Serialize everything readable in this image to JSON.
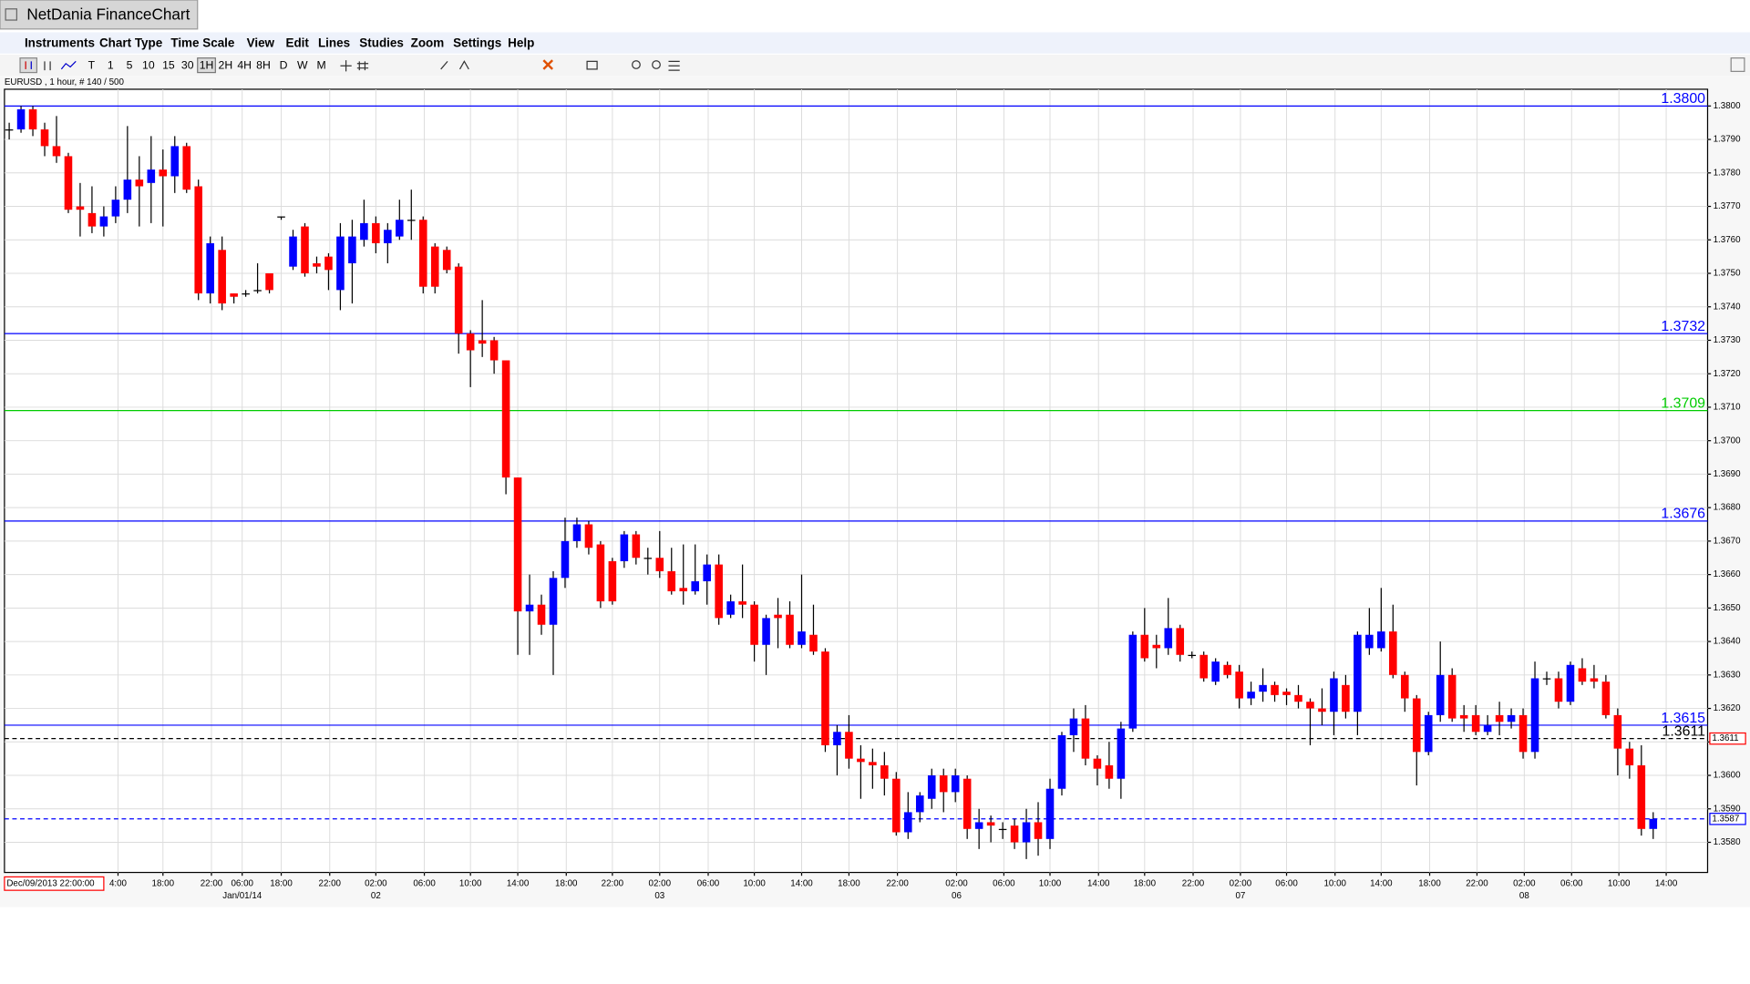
{
  "window": {
    "title": "NetDania FinanceChart",
    "menu": [
      "Instruments",
      "Chart Type",
      "Time Scale",
      "View",
      "Edit",
      "Lines",
      "Studies",
      "Zoom",
      "Settings",
      "Help"
    ],
    "toolbar": [
      "T",
      "1",
      "5",
      "10",
      "15",
      "30",
      "1H",
      "2H",
      "4H",
      "8H",
      "D",
      "W",
      "M"
    ],
    "toolbar_selected": "1H"
  },
  "chart_data": {
    "type": "candlestick",
    "symbol_info": "EURUSD , 1 hour, # 140 / 500",
    "start_label": "Dec/09/2013 22:00:00",
    "up_color": "#0000ff",
    "down_color": "#ff0000",
    "flat_color": "#000000",
    "grid": true,
    "xlim": [
      -0.4,
      143.6
    ],
    "ylim": [
      1.3571,
      1.3805
    ],
    "yticks": [
      {
        "value": 1.358,
        "label": "1.3580"
      },
      {
        "value": 1.359,
        "label": "1.3590"
      },
      {
        "value": 1.36,
        "label": "1.3600"
      },
      {
        "value": 1.361,
        "label": "1.3610"
      },
      {
        "value": 1.362,
        "label": "1.3620"
      },
      {
        "value": 1.363,
        "label": "1.3630"
      },
      {
        "value": 1.364,
        "label": "1.3640"
      },
      {
        "value": 1.365,
        "label": "1.3650"
      },
      {
        "value": 1.366,
        "label": "1.3660"
      },
      {
        "value": 1.367,
        "label": "1.3670"
      },
      {
        "value": 1.368,
        "label": "1.3680"
      },
      {
        "value": 1.369,
        "label": "1.3690"
      },
      {
        "value": 1.37,
        "label": "1.3700"
      },
      {
        "value": 1.371,
        "label": "1.3710"
      },
      {
        "value": 1.372,
        "label": "1.3720"
      },
      {
        "value": 1.373,
        "label": "1.3730"
      },
      {
        "value": 1.374,
        "label": "1.3740"
      },
      {
        "value": 1.375,
        "label": "1.3750"
      },
      {
        "value": 1.376,
        "label": "1.3760"
      },
      {
        "value": 1.377,
        "label": "1.3770"
      },
      {
        "value": 1.378,
        "label": "1.3780"
      },
      {
        "value": 1.379,
        "label": "1.3790"
      },
      {
        "value": 1.38,
        "label": "1.3800"
      }
    ],
    "xticks": [
      {
        "value": 9.2,
        "label": "4:00"
      },
      {
        "value": 13.0,
        "label": "18:00"
      },
      {
        "value": 17.1,
        "label": "22:00"
      },
      {
        "value": 19.7,
        "label": "06:00"
      },
      {
        "value": 23.0,
        "label": "18:00"
      },
      {
        "value": 27.1,
        "label": "22:00"
      },
      {
        "value": 31.0,
        "label": "02:00"
      },
      {
        "value": 35.1,
        "label": "06:00"
      },
      {
        "value": 39.0,
        "label": "10:00"
      },
      {
        "value": 43.0,
        "label": "14:00"
      },
      {
        "value": 47.1,
        "label": "18:00"
      },
      {
        "value": 51.0,
        "label": "22:00"
      },
      {
        "value": 55.0,
        "label": "02:00"
      },
      {
        "value": 59.1,
        "label": "06:00"
      },
      {
        "value": 63.0,
        "label": "10:00"
      },
      {
        "value": 67.0,
        "label": "14:00"
      },
      {
        "value": 71.0,
        "label": "18:00"
      },
      {
        "value": 75.1,
        "label": "22:00"
      },
      {
        "value": 80.1,
        "label": "02:00"
      },
      {
        "value": 84.1,
        "label": "06:00"
      },
      {
        "value": 88.0,
        "label": "10:00"
      },
      {
        "value": 92.1,
        "label": "14:00"
      },
      {
        "value": 96.0,
        "label": "18:00"
      },
      {
        "value": 100.1,
        "label": "22:00"
      },
      {
        "value": 104.1,
        "label": "02:00"
      },
      {
        "value": 108.0,
        "label": "06:00"
      },
      {
        "value": 112.1,
        "label": "10:00"
      },
      {
        "value": 116.0,
        "label": "14:00"
      },
      {
        "value": 120.1,
        "label": "18:00"
      },
      {
        "value": 124.1,
        "label": "22:00"
      },
      {
        "value": 128.1,
        "label": "02:00"
      },
      {
        "value": 132.1,
        "label": "06:00"
      },
      {
        "value": 136.1,
        "label": "10:00"
      },
      {
        "value": 140.1,
        "label": "14:00"
      }
    ],
    "date_ticks": [
      {
        "value": 19.7,
        "label": "Jan/01/14"
      },
      {
        "value": 31.0,
        "label": "02"
      },
      {
        "value": 55.0,
        "label": "03"
      },
      {
        "value": 80.1,
        "label": "06"
      },
      {
        "value": 104.1,
        "label": "07"
      },
      {
        "value": 128.1,
        "label": "08"
      }
    ],
    "levels": [
      {
        "value": 1.38,
        "label": "1.3800",
        "color": "#0000ff",
        "dashed": false
      },
      {
        "value": 1.3732,
        "label": "1.3732",
        "color": "#0000ff",
        "dashed": false
      },
      {
        "value": 1.3709,
        "label": "1.3709",
        "color": "#00cc00",
        "dashed": false
      },
      {
        "value": 1.3676,
        "label": "1.3676",
        "color": "#0000ff",
        "dashed": false
      },
      {
        "value": 1.3615,
        "label": "1.3615",
        "color": "#0000ff",
        "dashed": false
      },
      {
        "value": 1.3611,
        "label": "1.3611",
        "color": "#000000",
        "dashed": true,
        "tag": "1.3611",
        "tag_color": "#ff0000"
      },
      {
        "value": 1.3587,
        "color": "#0000ff",
        "dashed": true,
        "tag": "1.3587",
        "tag_color": "#0000ff"
      }
    ],
    "open": [
      1.3793,
      1.3793,
      1.3799,
      1.3793,
      1.3788,
      1.3785,
      1.377,
      1.3768,
      1.3764,
      1.3767,
      1.3772,
      1.3778,
      1.3777,
      1.3781,
      1.3779,
      1.3788,
      1.3776,
      1.3744,
      1.3757,
      1.3744,
      1.3744,
      1.3745,
      1.375,
      1.3767,
      1.3752,
      1.3764,
      1.3753,
      1.3755,
      1.3745,
      1.3753,
      1.376,
      1.3765,
      1.3759,
      1.3761,
      1.3766,
      1.3766,
      1.3758,
      1.3757,
      1.3752,
      1.3732,
      1.373,
      1.373,
      1.3724,
      1.3689,
      1.3649,
      1.3651,
      1.3645,
      1.3659,
      1.367,
      1.3675,
      1.3669,
      1.3664,
      1.3664,
      1.3672,
      1.3665,
      1.3665,
      1.3661,
      1.3656,
      1.3655,
      1.3658,
      1.3663,
      1.3648,
      1.3652,
      1.3651,
      1.3639,
      1.3648,
      1.3648,
      1.3639,
      1.3642,
      1.3637,
      1.3609,
      1.3613,
      1.3605,
      1.3604,
      1.3603,
      1.3599,
      1.3583,
      1.3589,
      1.3593,
      1.36,
      1.3595,
      1.3599,
      1.3584,
      1.3586,
      1.3584,
      1.3585,
      1.358,
      1.3586,
      1.3581,
      1.3596,
      1.3612,
      1.3617,
      1.3605,
      1.3603,
      1.3599,
      1.3614,
      1.3642,
      1.3639,
      1.3638,
      1.3644,
      1.3636,
      1.3636,
      1.3628,
      1.3633,
      1.3631,
      1.3623,
      1.3625,
      1.3627,
      1.3625,
      1.3624,
      1.3622,
      1.362,
      1.3619,
      1.3627,
      1.3619,
      1.3638,
      1.3638,
      1.3643,
      1.363,
      1.3623,
      1.3607,
      1.3618,
      1.363,
      1.3618,
      1.3618,
      1.3613,
      1.3618,
      1.3616,
      1.3618,
      1.3607,
      1.3629,
      1.3629,
      1.3622,
      1.3632,
      1.3629,
      1.3628,
      1.3618,
      1.3608,
      1.3603,
      1.3584
    ],
    "high": [
      1.3795,
      1.38,
      1.38,
      1.3795,
      1.3797,
      1.3786,
      1.3777,
      1.3776,
      1.377,
      1.3776,
      1.3794,
      1.3785,
      1.3791,
      1.3787,
      1.3791,
      1.3789,
      1.3778,
      1.3761,
      1.3761,
      1.3744,
      1.3745,
      1.3753,
      1.375,
      1.3767,
      1.3763,
      1.3765,
      1.3755,
      1.3756,
      1.3765,
      1.3766,
      1.3772,
      1.3767,
      1.3765,
      1.3772,
      1.3775,
      1.3767,
      1.3759,
      1.3758,
      1.3753,
      1.3733,
      1.3742,
      1.3731,
      1.3724,
      1.3689,
      1.366,
      1.3654,
      1.3661,
      1.3677,
      1.3677,
      1.3676,
      1.367,
      1.3665,
      1.3673,
      1.3673,
      1.3668,
      1.3673,
      1.3668,
      1.3669,
      1.3669,
      1.3666,
      1.3666,
      1.3654,
      1.3663,
      1.3652,
      1.3648,
      1.3653,
      1.3652,
      1.366,
      1.3651,
      1.3638,
      1.3615,
      1.3618,
      1.3609,
      1.3608,
      1.3607,
      1.3601,
      1.3595,
      1.3595,
      1.3602,
      1.3602,
      1.3602,
      1.36,
      1.359,
      1.3588,
      1.3586,
      1.3587,
      1.359,
      1.3592,
      1.3599,
      1.3613,
      1.362,
      1.3621,
      1.3606,
      1.361,
      1.3616,
      1.3643,
      1.365,
      1.3642,
      1.3653,
      1.3645,
      1.3637,
      1.3637,
      1.3635,
      1.3634,
      1.3633,
      1.3628,
      1.3632,
      1.3628,
      1.3626,
      1.3627,
      1.3623,
      1.3626,
      1.3631,
      1.363,
      1.3643,
      1.365,
      1.3656,
      1.3651,
      1.3631,
      1.3624,
      1.3619,
      1.364,
      1.3632,
      1.3621,
      1.3621,
      1.3618,
      1.3622,
      1.362,
      1.362,
      1.3634,
      1.3631,
      1.3631,
      1.3634,
      1.3635,
      1.3633,
      1.363,
      1.362,
      1.361,
      1.3609,
      1.3589
    ],
    "low": [
      1.379,
      1.3792,
      1.3791,
      1.3785,
      1.3783,
      1.3768,
      1.3761,
      1.3762,
      1.3761,
      1.3765,
      1.3768,
      1.3764,
      1.3765,
      1.3764,
      1.3774,
      1.3774,
      1.3742,
      1.3741,
      1.3739,
      1.3741,
      1.3743,
      1.3744,
      1.3744,
      1.3766,
      1.3751,
      1.3749,
      1.375,
      1.3745,
      1.3739,
      1.3741,
      1.3758,
      1.3756,
      1.3753,
      1.376,
      1.376,
      1.3744,
      1.3744,
      1.375,
      1.3726,
      1.3716,
      1.3725,
      1.372,
      1.3684,
      1.3636,
      1.3636,
      1.3642,
      1.363,
      1.3656,
      1.3668,
      1.3666,
      1.365,
      1.3651,
      1.3662,
      1.3663,
      1.366,
      1.3659,
      1.3654,
      1.3651,
      1.3654,
      1.3651,
      1.3645,
      1.3647,
      1.3647,
      1.3634,
      1.363,
      1.3638,
      1.3638,
      1.3638,
      1.3636,
      1.3607,
      1.36,
      1.3602,
      1.3593,
      1.3596,
      1.3594,
      1.3582,
      1.3581,
      1.3586,
      1.359,
      1.3589,
      1.3592,
      1.3581,
      1.3578,
      1.358,
      1.3581,
      1.3578,
      1.3575,
      1.3576,
      1.3578,
      1.3594,
      1.3607,
      1.3603,
      1.3597,
      1.3596,
      1.3593,
      1.3613,
      1.3634,
      1.3632,
      1.3636,
      1.3634,
      1.3635,
      1.3628,
      1.3627,
      1.3629,
      1.362,
      1.3621,
      1.3622,
      1.3622,
      1.3621,
      1.362,
      1.3609,
      1.3615,
      1.3612,
      1.3617,
      1.3612,
      1.3636,
      1.3637,
      1.3629,
      1.3619,
      1.3597,
      1.3606,
      1.3616,
      1.3616,
      1.3613,
      1.3612,
      1.3612,
      1.3612,
      1.3614,
      1.3605,
      1.3605,
      1.3627,
      1.362,
      1.3621,
      1.3627,
      1.3626,
      1.3617,
      1.36,
      1.3599,
      1.3582,
      1.3581
    ],
    "close": [
      1.3793,
      1.3799,
      1.3793,
      1.3788,
      1.3785,
      1.3769,
      1.3769,
      1.3764,
      1.3767,
      1.3772,
      1.3778,
      1.3776,
      1.3781,
      1.3779,
      1.3788,
      1.3775,
      1.3744,
      1.3759,
      1.3741,
      1.3743,
      1.3744,
      1.3745,
      1.3745,
      1.3767,
      1.3761,
      1.375,
      1.3752,
      1.3751,
      1.3761,
      1.3761,
      1.3765,
      1.3759,
      1.3763,
      1.3766,
      1.3766,
      1.3746,
      1.3746,
      1.3751,
      1.3732,
      1.3727,
      1.3729,
      1.3724,
      1.3689,
      1.3649,
      1.3651,
      1.3645,
      1.3659,
      1.367,
      1.3675,
      1.3668,
      1.3652,
      1.3652,
      1.3672,
      1.3665,
      1.3665,
      1.3661,
      1.3655,
      1.3655,
      1.3658,
      1.3663,
      1.3647,
      1.3652,
      1.3651,
      1.3639,
      1.3647,
      1.3647,
      1.3639,
      1.3643,
      1.3637,
      1.3609,
      1.3613,
      1.3605,
      1.3604,
      1.3603,
      1.3599,
      1.3583,
      1.3589,
      1.3594,
      1.36,
      1.3595,
      1.36,
      1.3584,
      1.3586,
      1.3585,
      1.3584,
      1.358,
      1.3586,
      1.3581,
      1.3596,
      1.3612,
      1.3617,
      1.3605,
      1.3602,
      1.3599,
      1.3614,
      1.3642,
      1.3635,
      1.3638,
      1.3644,
      1.3636,
      1.3636,
      1.3629,
      1.3634,
      1.363,
      1.3623,
      1.3625,
      1.3627,
      1.3624,
      1.3624,
      1.3622,
      1.362,
      1.3619,
      1.3629,
      1.3619,
      1.3642,
      1.3642,
      1.3643,
      1.363,
      1.3623,
      1.3607,
      1.3618,
      1.363,
      1.3617,
      1.3617,
      1.3613,
      1.3615,
      1.3616,
      1.3618,
      1.3607,
      1.3629,
      1.3629,
      1.3622,
      1.3633,
      1.3628,
      1.3628,
      1.3618,
      1.3608,
      1.3603,
      1.3584,
      1.3587
    ]
  }
}
